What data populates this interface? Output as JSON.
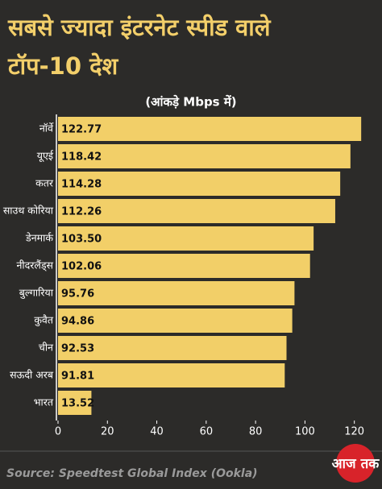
{
  "chart_data": {
    "type": "bar",
    "orientation": "horizontal",
    "title": [
      "सबसे ज्यादा इंटरनेट स्पीड वाले",
      "टॉप-10 देश"
    ],
    "subtitle": "(आंकड़े Mbps में)",
    "categories": [
      "नॉर्वे",
      "यूएई",
      "कतर",
      "साउथ कोरिया",
      "डेनमार्क",
      "नीदरलैंड्स",
      "बुल्गारिया",
      "कुवैत",
      "चीन",
      "सऊदी अरब",
      "भारत"
    ],
    "values": [
      122.77,
      118.42,
      114.28,
      112.26,
      103.5,
      102.06,
      95.76,
      94.86,
      92.53,
      91.81,
      13.52
    ],
    "value_labels": [
      "122.77",
      "118.42",
      "114.28",
      "112.26",
      "103.50",
      "102.06",
      "95.76",
      "94.86",
      "92.53",
      "91.81",
      "13.52"
    ],
    "color": "#f2cf68",
    "xlim": [
      0,
      125
    ],
    "xticks": [
      0,
      20,
      40,
      60,
      80,
      100,
      120
    ],
    "source": "Source: Speedtest Global Index (Ookla)",
    "logo": "आज तक"
  }
}
